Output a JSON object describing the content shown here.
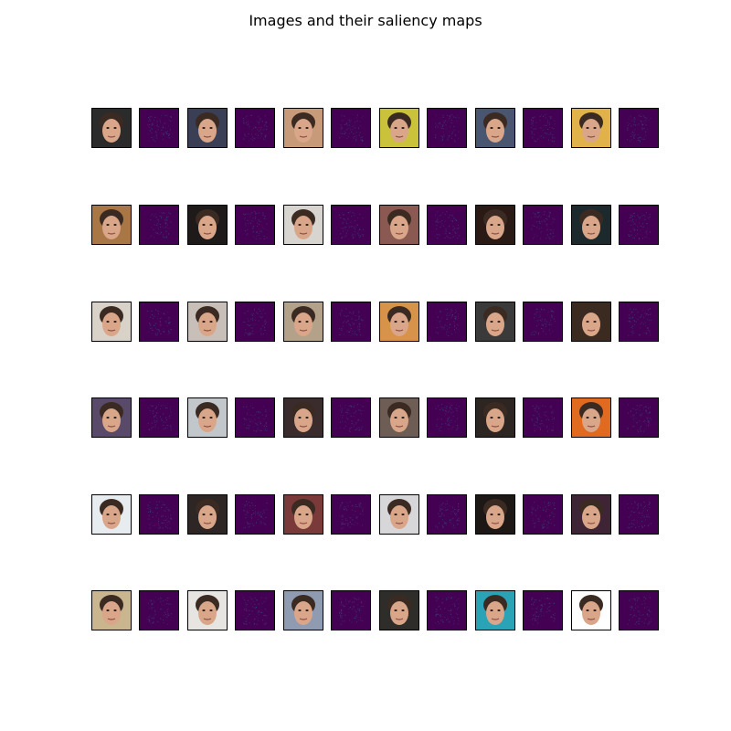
{
  "figure": {
    "title": "Images and their saliency maps"
  },
  "grid": {
    "rows": 6,
    "pairs_per_row": 6,
    "saliency_colormap": "viridis",
    "saliency_base_color": "#440154",
    "saliency_highlight_color": "#3b528b",
    "faces": [
      [
        "#2b2b2b",
        "#3a3f55",
        "#c79a7a",
        "#c9c23a",
        "#4a5670",
        "#e2b24a"
      ],
      [
        "#a87745",
        "#1e1a1a",
        "#d8d4cf",
        "#8a5a52",
        "#2a1a16",
        "#1c2a2e"
      ],
      [
        "#d9d2c8",
        "#c8c0b8",
        "#b3a18a",
        "#d8934a",
        "#3a3a3a",
        "#3a2a20"
      ],
      [
        "#5a4a6a",
        "#c2c7cc",
        "#3a2c2c",
        "#6d5d55",
        "#2d2522",
        "#e06a20"
      ],
      [
        "#e6ecf0",
        "#2d2624",
        "#7a3a3a",
        "#d7d7da",
        "#1d1715",
        "#3e2434"
      ],
      [
        "#c9b58e",
        "#e7e5e2",
        "#8f9bb0",
        "#2e2d2a",
        "#2aa3b7",
        "#ffffff"
      ]
    ]
  }
}
